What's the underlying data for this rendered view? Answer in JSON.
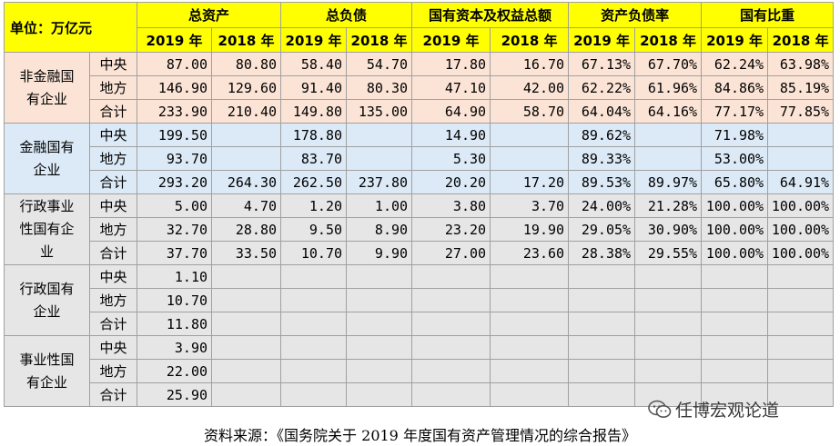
{
  "header": {
    "unit_label": "单位：万亿元",
    "groups": [
      "总资产",
      "总负债",
      "国有资本及权益总额",
      "资产负债率",
      "国有比重"
    ],
    "years": [
      "2019 年",
      "2018 年"
    ]
  },
  "groups": [
    {
      "category": "非金融国有企业",
      "rows": [
        {
          "sub": "中央",
          "values": [
            "87.00",
            "80.80",
            "58.40",
            "54.70",
            "17.80",
            "16.70",
            "67.13%",
            "67.70%",
            "62.24%",
            "63.98%"
          ]
        },
        {
          "sub": "地方",
          "values": [
            "146.90",
            "129.60",
            "91.40",
            "80.30",
            "47.10",
            "42.00",
            "62.22%",
            "61.96%",
            "84.86%",
            "85.19%"
          ]
        },
        {
          "sub": "合计",
          "values": [
            "233.90",
            "210.40",
            "149.80",
            "135.00",
            "64.90",
            "58.70",
            "64.04%",
            "64.16%",
            "77.17%",
            "77.85%"
          ]
        }
      ]
    },
    {
      "category": "金融国有企业",
      "rows": [
        {
          "sub": "中央",
          "values": [
            "199.50",
            "",
            "178.80",
            "",
            "14.90",
            "",
            "89.62%",
            "",
            "71.98%",
            ""
          ]
        },
        {
          "sub": "地方",
          "values": [
            "93.70",
            "",
            "83.70",
            "",
            "5.30",
            "",
            "89.33%",
            "",
            "53.00%",
            ""
          ]
        },
        {
          "sub": "合计",
          "values": [
            "293.20",
            "264.30",
            "262.50",
            "237.80",
            "20.20",
            "17.20",
            "89.53%",
            "89.97%",
            "65.80%",
            "64.91%"
          ]
        }
      ]
    },
    {
      "category": "行政事业性国有企业",
      "rows": [
        {
          "sub": "中央",
          "values": [
            "5.00",
            "4.70",
            "1.20",
            "1.00",
            "3.80",
            "3.70",
            "24.00%",
            "21.28%",
            "100.00%",
            "100.00%"
          ]
        },
        {
          "sub": "地方",
          "values": [
            "32.70",
            "28.80",
            "9.50",
            "8.90",
            "23.20",
            "19.90",
            "29.05%",
            "30.90%",
            "100.00%",
            "100.00%"
          ]
        },
        {
          "sub": "合计",
          "values": [
            "37.70",
            "33.50",
            "10.70",
            "9.90",
            "27.00",
            "23.60",
            "28.38%",
            "29.55%",
            "100.00%",
            "100.00%"
          ]
        }
      ]
    },
    {
      "category": "行政国有企业",
      "rows": [
        {
          "sub": "中央",
          "values": [
            "1.10",
            "",
            "",
            "",
            "",
            "",
            "",
            "",
            "",
            ""
          ]
        },
        {
          "sub": "地方",
          "values": [
            "10.70",
            "",
            "",
            "",
            "",
            "",
            "",
            "",
            "",
            ""
          ]
        },
        {
          "sub": "合计",
          "values": [
            "11.80",
            "",
            "",
            "",
            "",
            "",
            "",
            "",
            "",
            ""
          ]
        }
      ]
    },
    {
      "category": "事业性国有企业",
      "rows": [
        {
          "sub": "中央",
          "values": [
            "3.90",
            "",
            "",
            "",
            "",
            "",
            "",
            "",
            "",
            ""
          ]
        },
        {
          "sub": "地方",
          "values": [
            "22.00",
            "",
            "",
            "",
            "",
            "",
            "",
            "",
            "",
            ""
          ]
        },
        {
          "sub": "合计",
          "values": [
            "25.90",
            "",
            "",
            "",
            "",
            "",
            "",
            "",
            "",
            ""
          ]
        }
      ]
    }
  ],
  "source": "资料来源：《国务院关于 2019 年度国有资产管理情况的综合报告》",
  "watermark": "任博宏观论道"
}
